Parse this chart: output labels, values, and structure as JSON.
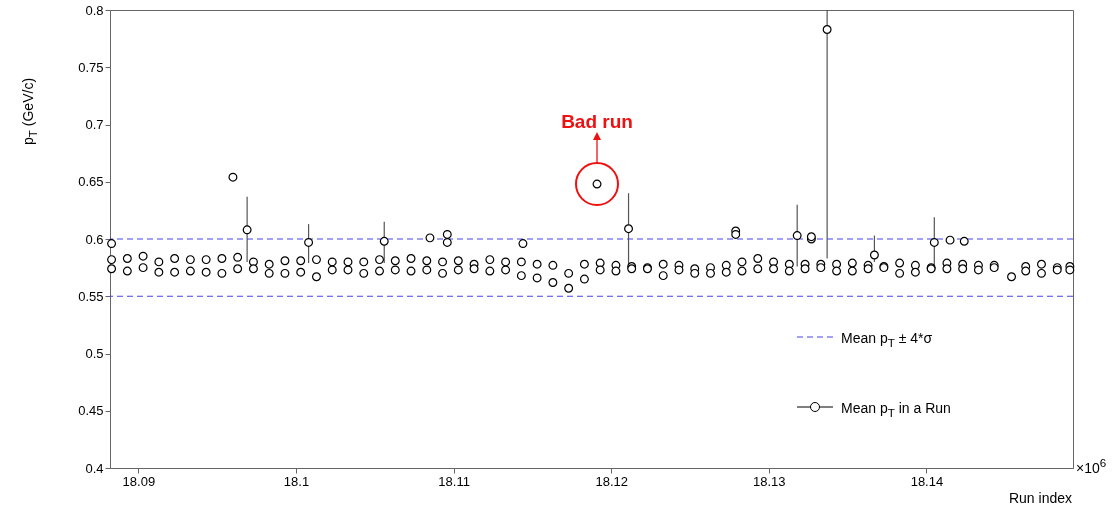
{
  "chart_data": {
    "type": "scatter",
    "xlabel": "Run index",
    "ylabel": "p$_{T}$ (GeV/c)",
    "xlim": [
      18.0882,
      18.1493
    ],
    "xticks": [
      18.09,
      18.1,
      18.11,
      18.12,
      18.13,
      18.14
    ],
    "ylim": [
      0.4,
      0.8
    ],
    "yticks": [
      0.4,
      0.45,
      0.5,
      0.55,
      0.6,
      0.65,
      0.7,
      0.75,
      0.8
    ],
    "grid": false,
    "legend": "right",
    "marker": "circle",
    "ref_lines": [
      {
        "axis": "y",
        "value": 0.6,
        "label": "Mean p$_{T}$ ± 4*σ",
        "color": "#4444ee",
        "line_style": "dashed"
      },
      {
        "axis": "y",
        "value": 0.55,
        "color": "#4444ee",
        "line_style": "dashed"
      }
    ],
    "annotations": [
      {
        "text": "Bad run",
        "x": 18.1191,
        "y": 0.648
      },
      "×10$^{6}$"
    ],
    "series": [
      {
        "name": "Mean p$_{T}$ in a Run",
        "color": "#000000",
        "x": [
          18.0883,
          18.0883,
          18.0893,
          18.0893,
          18.0903,
          18.0903,
          18.0913,
          18.0913,
          18.0923,
          18.0923,
          18.0933,
          18.0933,
          18.0943,
          18.0943,
          18.0953,
          18.0953,
          18.0963,
          18.0963,
          18.0973,
          18.0973,
          18.0983,
          18.0983,
          18.0993,
          18.0993,
          18.1003,
          18.1003,
          18.1013,
          18.1013,
          18.1023,
          18.1023,
          18.1033,
          18.1033,
          18.1043,
          18.1043,
          18.1053,
          18.1053,
          18.1063,
          18.1063,
          18.1073,
          18.1073,
          18.1083,
          18.1083,
          18.1093,
          18.1093,
          18.1103,
          18.1103,
          18.1113,
          18.1113,
          18.1123,
          18.1123,
          18.1133,
          18.1133,
          18.1143,
          18.1143,
          18.1153,
          18.1153,
          18.1163,
          18.1163,
          18.1173,
          18.1173,
          18.1183,
          18.1183,
          18.1193,
          18.1193,
          18.1203,
          18.1203,
          18.1213,
          18.1213,
          18.1223,
          18.1223,
          18.1233,
          18.1233,
          18.1243,
          18.1243,
          18.1253,
          18.1253,
          18.1263,
          18.1263,
          18.1273,
          18.1273,
          18.1283,
          18.1283,
          18.1293,
          18.1293,
          18.1303,
          18.1303,
          18.1313,
          18.1313,
          18.1323,
          18.1323,
          18.1333,
          18.1333,
          18.1343,
          18.1343,
          18.1353,
          18.1353,
          18.1363,
          18.1363,
          18.1373,
          18.1373,
          18.1383,
          18.1383,
          18.1393,
          18.1393,
          18.1403,
          18.1403,
          18.1413,
          18.1413,
          18.1423,
          18.1423,
          18.1433,
          18.1433,
          18.1443,
          18.1443,
          18.1463,
          18.1463,
          18.1473,
          18.1473,
          18.1483,
          18.1483,
          18.1491,
          18.1491,
          18.0883,
          18.096,
          18.0969,
          18.1008,
          18.1056,
          18.1085,
          18.1096,
          18.1096,
          18.1144,
          18.1191,
          18.1211,
          18.1279,
          18.1279,
          18.1318,
          18.1327,
          18.1327,
          18.1337,
          18.1367,
          18.1405,
          18.1415,
          18.1424,
          18.1454
        ],
        "values": [
          0.582,
          0.574,
          0.583,
          0.572,
          0.585,
          0.575,
          0.58,
          0.571,
          0.583,
          0.571,
          0.582,
          0.572,
          0.582,
          0.571,
          0.583,
          0.57,
          0.584,
          0.574,
          0.58,
          0.574,
          0.578,
          0.57,
          0.581,
          0.57,
          0.581,
          0.571,
          0.582,
          0.567,
          0.58,
          0.573,
          0.58,
          0.573,
          0.58,
          0.57,
          0.582,
          0.572,
          0.581,
          0.573,
          0.583,
          0.572,
          0.581,
          0.573,
          0.58,
          0.57,
          0.581,
          0.573,
          0.578,
          0.574,
          0.582,
          0.572,
          0.58,
          0.573,
          0.58,
          0.568,
          0.578,
          0.566,
          0.577,
          0.562,
          0.57,
          0.557,
          0.578,
          0.565,
          0.579,
          0.573,
          0.577,
          0.572,
          0.576,
          0.574,
          0.575,
          0.574,
          0.578,
          0.568,
          0.577,
          0.573,
          0.574,
          0.57,
          0.575,
          0.57,
          0.577,
          0.571,
          0.58,
          0.572,
          0.583,
          0.574,
          0.58,
          0.574,
          0.578,
          0.572,
          0.578,
          0.574,
          0.578,
          0.575,
          0.578,
          0.572,
          0.579,
          0.572,
          0.577,
          0.574,
          0.576,
          0.575,
          0.579,
          0.57,
          0.577,
          0.571,
          0.575,
          0.574,
          0.579,
          0.574,
          0.578,
          0.574,
          0.577,
          0.573,
          0.577,
          0.575,
          0.576,
          0.572,
          0.578,
          0.57,
          0.575,
          0.573,
          0.576,
          0.573,
          0.596,
          0.654,
          0.608,
          0.597,
          0.598,
          0.601,
          0.604,
          0.597,
          0.596,
          0.648,
          0.609,
          0.607,
          0.604,
          0.603,
          0.6,
          0.602,
          0.783,
          0.586,
          0.597,
          0.599,
          0.598,
          0.567
        ],
        "errors": [
          null,
          null,
          null,
          null,
          null,
          null,
          null,
          null,
          null,
          null,
          null,
          null,
          null,
          null,
          null,
          null,
          null,
          null,
          null,
          null,
          null,
          null,
          null,
          null,
          null,
          null,
          null,
          null,
          null,
          null,
          null,
          null,
          null,
          null,
          null,
          null,
          null,
          null,
          null,
          null,
          null,
          null,
          null,
          null,
          null,
          null,
          null,
          null,
          null,
          null,
          null,
          null,
          null,
          null,
          null,
          null,
          null,
          null,
          null,
          null,
          null,
          null,
          null,
          null,
          null,
          null,
          null,
          null,
          null,
          null,
          null,
          null,
          null,
          null,
          null,
          null,
          null,
          null,
          null,
          null,
          null,
          null,
          null,
          null,
          null,
          null,
          null,
          null,
          null,
          null,
          null,
          null,
          null,
          null,
          null,
          null,
          null,
          null,
          null,
          null,
          null,
          null,
          null,
          null,
          null,
          null,
          null,
          null,
          null,
          null,
          null,
          null,
          null,
          null,
          null,
          null,
          null,
          null,
          null,
          null,
          null,
          null,
          null,
          null,
          [
            0.58,
            0.637
          ],
          [
            0.579,
            0.613
          ],
          [
            0.579,
            0.615
          ],
          null,
          null,
          null,
          null,
          null,
          [
            0.578,
            0.64
          ],
          null,
          null,
          [
            0.576,
            0.63
          ],
          null,
          null,
          [
            0.583,
            0.8
          ],
          [
            0.58,
            0.603
          ],
          [
            0.575,
            0.619
          ],
          null,
          null,
          null
        ]
      }
    ]
  }
}
